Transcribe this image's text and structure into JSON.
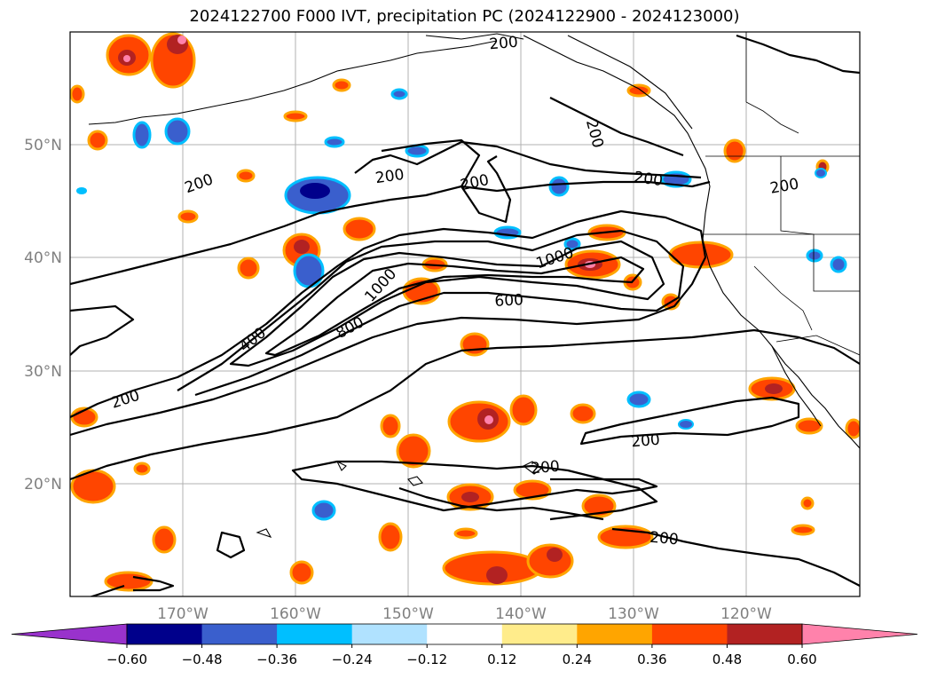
{
  "title": "2024122700 F000 IVT, precipitation PC (2024122900 - 2024123000)",
  "lat_ticks": [
    "50°N",
    "40°N",
    "30°N",
    "20°N"
  ],
  "lon_ticks": [
    "170°W",
    "160°W",
    "150°W",
    "140°W",
    "130°W",
    "120°W"
  ],
  "contour_labels": [
    "200",
    "200",
    "200",
    "200",
    "200",
    "200",
    "200",
    "200",
    "200",
    "200",
    "200",
    "1000",
    "1000",
    "800",
    "600",
    "400"
  ],
  "colorbar": {
    "ticks": [
      "−0.60",
      "−0.48",
      "−0.36",
      "−0.24",
      "−0.12",
      "0.12",
      "0.24",
      "0.36",
      "0.48",
      "0.60"
    ],
    "colors": [
      "#9932cc",
      "#00008b",
      "#3a5fcd",
      "#00bfff",
      "#b0e2ff",
      "#ffffff",
      "#ffec8b",
      "#ffa500",
      "#ff4500",
      "#b22222",
      "#ff82ab"
    ]
  },
  "chart_data": {
    "type": "heatmap",
    "title": "2024122700 F000 IVT, precipitation PC (2024122900 - 2024123000)",
    "lon_range": [
      -180,
      -110
    ],
    "lat_range": [
      10,
      60
    ],
    "contour_levels": [
      200,
      400,
      600,
      800,
      1000
    ],
    "colorbar_levels": [
      -0.6,
      -0.48,
      -0.36,
      -0.24,
      -0.12,
      0.12,
      0.24,
      0.36,
      0.48,
      0.6
    ],
    "colorbar_extend": "both",
    "grid": true
  }
}
